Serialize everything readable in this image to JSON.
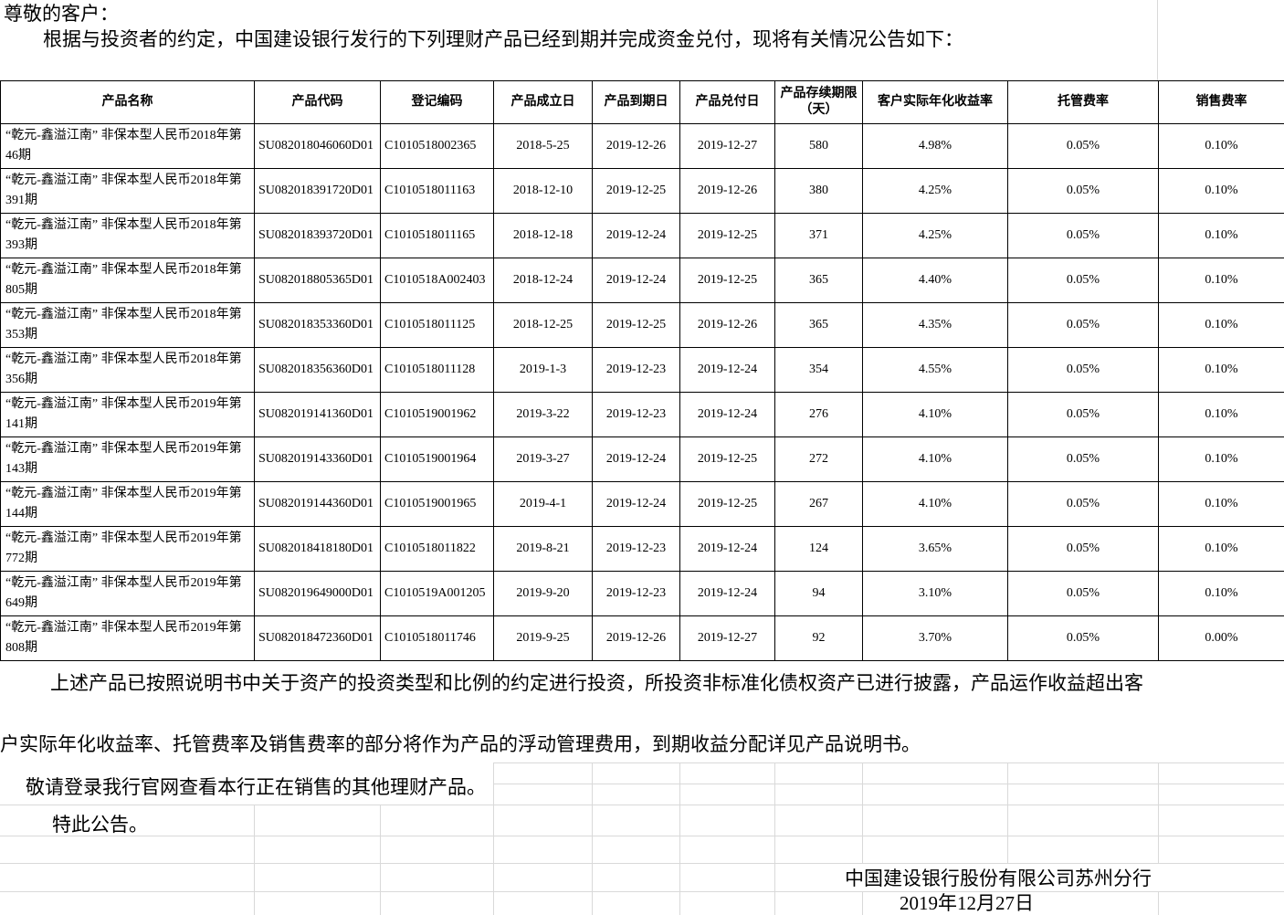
{
  "page": {
    "greeting": "尊敬的客户：",
    "intro": "根据与投资者的约定，中国建设银行发行的下列理财产品已经到期并完成资金兑付，现将有关情况公告如下："
  },
  "table": {
    "headers": [
      "产品名称",
      "产品代码",
      "登记编码",
      "产品成立日",
      "产品到期日",
      "产品兑付日",
      "产品存续期限（天）",
      "客户实际年化收益率",
      "托管费率",
      "销售费率"
    ],
    "column_keys": [
      "name",
      "code",
      "reg_code",
      "start_date",
      "maturity_date",
      "payment_date",
      "duration_days",
      "yield",
      "custody_fee",
      "sales_fee"
    ],
    "products": [
      {
        "name": "“乾元-鑫溢江南” 非保本型人民币2018年第46期",
        "code": "SU082018046060D01",
        "reg_code": "C1010518002365",
        "start_date": "2018-5-25",
        "maturity_date": "2019-12-26",
        "payment_date": "2019-12-27",
        "duration_days": "580",
        "yield": "4.98%",
        "custody_fee": "0.05%",
        "sales_fee": "0.10%"
      },
      {
        "name": "“乾元-鑫溢江南” 非保本型人民币2018年第391期",
        "code": "SU082018391720D01",
        "reg_code": "C1010518011163",
        "start_date": "2018-12-10",
        "maturity_date": "2019-12-25",
        "payment_date": "2019-12-26",
        "duration_days": "380",
        "yield": "4.25%",
        "custody_fee": "0.05%",
        "sales_fee": "0.10%"
      },
      {
        "name": "“乾元-鑫溢江南” 非保本型人民币2018年第393期",
        "code": "SU082018393720D01",
        "reg_code": "C1010518011165",
        "start_date": "2018-12-18",
        "maturity_date": "2019-12-24",
        "payment_date": "2019-12-25",
        "duration_days": "371",
        "yield": "4.25%",
        "custody_fee": "0.05%",
        "sales_fee": "0.10%"
      },
      {
        "name": "“乾元-鑫溢江南” 非保本型人民币2018年第805期",
        "code": "SU082018805365D01",
        "reg_code": "C1010518A002403",
        "start_date": "2018-12-24",
        "maturity_date": "2019-12-24",
        "payment_date": "2019-12-25",
        "duration_days": "365",
        "yield": "4.40%",
        "custody_fee": "0.05%",
        "sales_fee": "0.10%"
      },
      {
        "name": "“乾元-鑫溢江南” 非保本型人民币2018年第353期",
        "code": "SU082018353360D01",
        "reg_code": "C1010518011125",
        "start_date": "2018-12-25",
        "maturity_date": "2019-12-25",
        "payment_date": "2019-12-26",
        "duration_days": "365",
        "yield": "4.35%",
        "custody_fee": "0.05%",
        "sales_fee": "0.10%"
      },
      {
        "name": "“乾元-鑫溢江南” 非保本型人民币2018年第356期",
        "code": "SU082018356360D01",
        "reg_code": "C1010518011128",
        "start_date": "2019-1-3",
        "maturity_date": "2019-12-23",
        "payment_date": "2019-12-24",
        "duration_days": "354",
        "yield": "4.55%",
        "custody_fee": "0.05%",
        "sales_fee": "0.10%"
      },
      {
        "name": "“乾元-鑫溢江南” 非保本型人民币2019年第141期",
        "code": "SU082019141360D01",
        "reg_code": "C1010519001962",
        "start_date": "2019-3-22",
        "maturity_date": "2019-12-23",
        "payment_date": "2019-12-24",
        "duration_days": "276",
        "yield": "4.10%",
        "custody_fee": "0.05%",
        "sales_fee": "0.10%"
      },
      {
        "name": "“乾元-鑫溢江南” 非保本型人民币2019年第143期",
        "code": "SU082019143360D01",
        "reg_code": "C1010519001964",
        "start_date": "2019-3-27",
        "maturity_date": "2019-12-24",
        "payment_date": "2019-12-25",
        "duration_days": "272",
        "yield": "4.10%",
        "custody_fee": "0.05%",
        "sales_fee": "0.10%"
      },
      {
        "name": "“乾元-鑫溢江南” 非保本型人民币2019年第144期",
        "code": "SU082019144360D01",
        "reg_code": "C1010519001965",
        "start_date": "2019-4-1",
        "maturity_date": "2019-12-24",
        "payment_date": "2019-12-25",
        "duration_days": "267",
        "yield": "4.10%",
        "custody_fee": "0.05%",
        "sales_fee": "0.10%"
      },
      {
        "name": "“乾元-鑫溢江南” 非保本型人民币2019年第772期",
        "code": "SU082018418180D01",
        "reg_code": "C1010518011822",
        "start_date": "2019-8-21",
        "maturity_date": "2019-12-23",
        "payment_date": "2019-12-24",
        "duration_days": "124",
        "yield": "3.65%",
        "custody_fee": "0.05%",
        "sales_fee": "0.10%"
      },
      {
        "name": "“乾元-鑫溢江南” 非保本型人民币2019年第649期",
        "code": "SU082019649000D01",
        "reg_code": "C1010519A001205",
        "start_date": "2019-9-20",
        "maturity_date": "2019-12-23",
        "payment_date": "2019-12-24",
        "duration_days": "94",
        "yield": "3.10%",
        "custody_fee": "0.05%",
        "sales_fee": "0.10%"
      },
      {
        "name": "“乾元-鑫溢江南” 非保本型人民币2019年第808期",
        "code": "SU082018472360D01",
        "reg_code": "C1010518011746",
        "start_date": "2019-9-25",
        "maturity_date": "2019-12-26",
        "payment_date": "2019-12-27",
        "duration_days": "92",
        "yield": "3.70%",
        "custody_fee": "0.05%",
        "sales_fee": "0.00%"
      }
    ]
  },
  "footer": {
    "para1": "上述产品已按照说明书中关于资产的投资类型和比例的约定进行投资，所投资非标准化债权资产已进行披露，产品运作收益超出客",
    "para2": "户实际年化收益率、托管费率及销售费率的部分将作为产品的浮动管理费用，到期收益分配详见产品说明书。",
    "para3": "敬请登录我行官网查看本行正在销售的其他理财产品。",
    "para4": "特此公告。",
    "signature": "中国建设银行股份有限公司苏州分行",
    "date": "2019年12月27日"
  },
  "colors": {
    "text": "#000000",
    "table_border": "#000000",
    "gridline": "#d9d9d9",
    "background": "#ffffff"
  }
}
